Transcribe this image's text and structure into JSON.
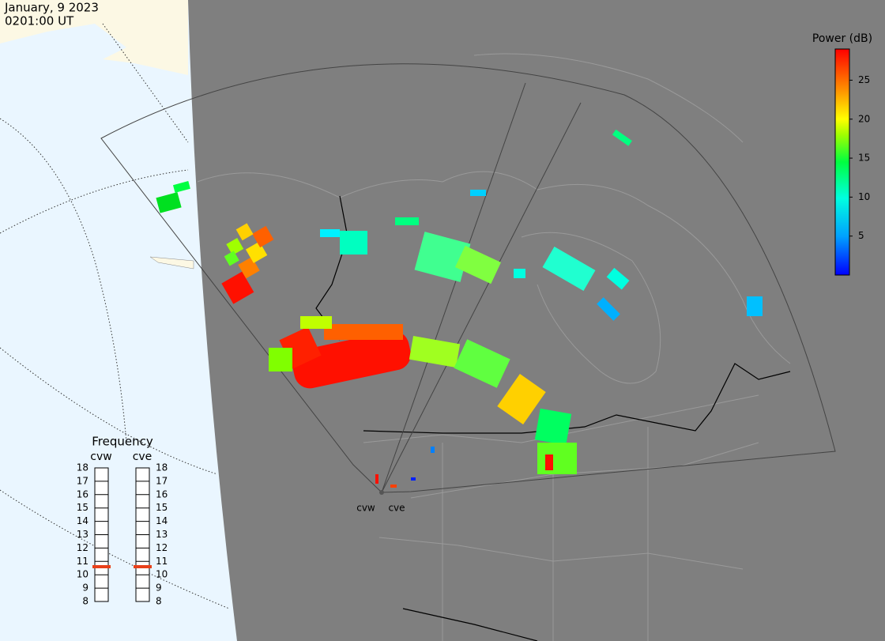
{
  "header": {
    "date": "January, 9 2023",
    "time": "0201:00 UT"
  },
  "colorbar": {
    "title": "Power (dB)",
    "range": [
      0,
      29
    ],
    "ticks": [
      5,
      10,
      15,
      20,
      25
    ]
  },
  "frequency": {
    "title": "Frequency",
    "range": [
      8,
      18
    ],
    "ticks": [
      8,
      9,
      10,
      11,
      12,
      13,
      14,
      15,
      16,
      17,
      18
    ],
    "radars": [
      {
        "name": "cvw",
        "value": 10.6
      },
      {
        "name": "cve",
        "value": 10.6
      }
    ]
  },
  "stations": [
    {
      "label": "cvw"
    },
    {
      "label": "cve"
    }
  ]
}
